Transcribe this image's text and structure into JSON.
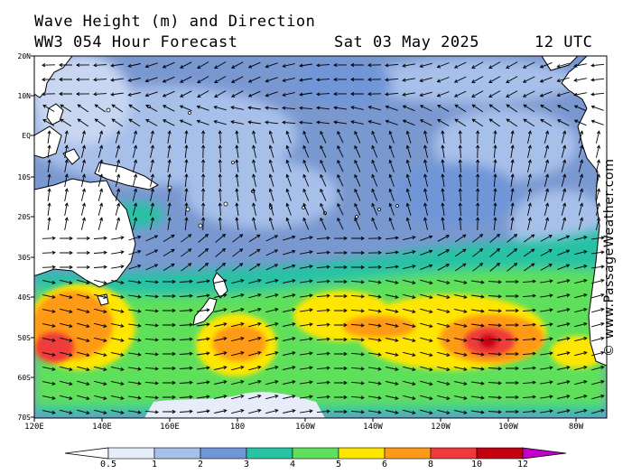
{
  "header": {
    "title_line1": "Wave Height (m) and Direction",
    "title_line2": "WW3 054 Hour Forecast",
    "date": "Sat 03 May 2025",
    "time": "12 UTC"
  },
  "map": {
    "region": "South Pacific Ocean",
    "variable": "significant wave height with mean wave direction arrows",
    "lat_labels": [
      "20N",
      "10N",
      "EQ",
      "10S",
      "20S",
      "30S",
      "40S",
      "50S",
      "60S",
      "70S"
    ],
    "lon_labels": [
      "120E",
      "140E",
      "160E",
      "180",
      "160W",
      "140W",
      "120W",
      "100W",
      "80W"
    ],
    "colors": {
      "ocean_bg": "#7a98d0",
      "land": "#ffffff",
      "coast": "#000000",
      "arrow": "#000000"
    }
  },
  "colorbar": {
    "labels": [
      "0.5",
      "1",
      "2",
      "3",
      "4",
      "5",
      "6",
      "8",
      "10",
      "12"
    ],
    "colors": [
      "#e6ecfa",
      "#a7c0ea",
      "#6f96d8",
      "#28c2a4",
      "#5ee05a",
      "#ffe600",
      "#ff9a18",
      "#ee3a3a",
      "#c20010",
      "#c400c8"
    ]
  },
  "credit": "© www.PassageWeather.com"
}
